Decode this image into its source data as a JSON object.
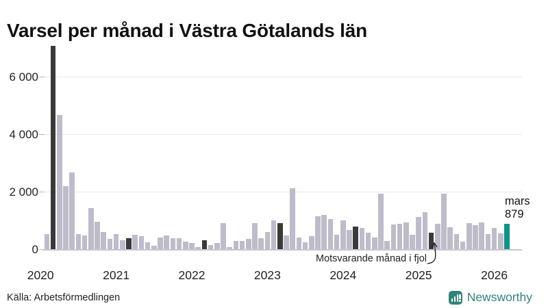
{
  "page": {
    "title": "Varsel per månad i Västra Götalands län",
    "source": "Källa: Arbetsförmedlingen"
  },
  "brand": {
    "wordmark": "Newsworthy",
    "icon": "bar-chart-badge-icon",
    "color": "#2f857c"
  },
  "annotation": {
    "text": "Motsvarande månad i fjol",
    "points_to_month": "2025-03"
  },
  "highlight": {
    "month_label": "mars",
    "value_label": "879",
    "month": "2026-03"
  },
  "colors": {
    "light": "#bebbca",
    "dark": "#3a3a3a",
    "highlight": "#0d9488",
    "grid": "#e7e6ec",
    "axis": "#c6c5ce",
    "tick": "#b5b4bd"
  },
  "chart_data": {
    "type": "bar",
    "title": "Varsel per månad i Västra Götalands län",
    "x_range": [
      "2020-02",
      "2026-03"
    ],
    "year_labels": [
      "2020",
      "2021",
      "2022",
      "2023",
      "2024",
      "2025",
      "2026"
    ],
    "ylim": [
      0,
      7100
    ],
    "grid": true,
    "legend": "none",
    "yticks": [
      {
        "value": 0,
        "label": "0"
      },
      {
        "value": 2000,
        "label": "2 000"
      },
      {
        "value": 4000,
        "label": "4 000"
      },
      {
        "value": 6000,
        "label": "6 000"
      }
    ],
    "points": [
      {
        "month": "2020-02",
        "value": 520,
        "kind": "light"
      },
      {
        "month": "2020-03",
        "value": 7070,
        "kind": "dark"
      },
      {
        "month": "2020-04",
        "value": 4660,
        "kind": "light"
      },
      {
        "month": "2020-05",
        "value": 2200,
        "kind": "light"
      },
      {
        "month": "2020-06",
        "value": 2660,
        "kind": "light"
      },
      {
        "month": "2020-07",
        "value": 520,
        "kind": "light"
      },
      {
        "month": "2020-08",
        "value": 470,
        "kind": "light"
      },
      {
        "month": "2020-09",
        "value": 1420,
        "kind": "light"
      },
      {
        "month": "2020-10",
        "value": 950,
        "kind": "light"
      },
      {
        "month": "2020-11",
        "value": 590,
        "kind": "light"
      },
      {
        "month": "2020-12",
        "value": 350,
        "kind": "light"
      },
      {
        "month": "2021-01",
        "value": 520,
        "kind": "light"
      },
      {
        "month": "2021-02",
        "value": 310,
        "kind": "light"
      },
      {
        "month": "2021-03",
        "value": 370,
        "kind": "dark"
      },
      {
        "month": "2021-04",
        "value": 500,
        "kind": "light"
      },
      {
        "month": "2021-05",
        "value": 450,
        "kind": "light"
      },
      {
        "month": "2021-06",
        "value": 240,
        "kind": "light"
      },
      {
        "month": "2021-07",
        "value": 120,
        "kind": "light"
      },
      {
        "month": "2021-08",
        "value": 405,
        "kind": "light"
      },
      {
        "month": "2021-09",
        "value": 475,
        "kind": "light"
      },
      {
        "month": "2021-10",
        "value": 380,
        "kind": "light"
      },
      {
        "month": "2021-11",
        "value": 380,
        "kind": "light"
      },
      {
        "month": "2021-12",
        "value": 260,
        "kind": "light"
      },
      {
        "month": "2022-01",
        "value": 215,
        "kind": "light"
      },
      {
        "month": "2022-02",
        "value": 60,
        "kind": "light"
      },
      {
        "month": "2022-03",
        "value": 310,
        "kind": "dark"
      },
      {
        "month": "2022-04",
        "value": 140,
        "kind": "light"
      },
      {
        "month": "2022-05",
        "value": 215,
        "kind": "light"
      },
      {
        "month": "2022-06",
        "value": 900,
        "kind": "light"
      },
      {
        "month": "2022-07",
        "value": 70,
        "kind": "light"
      },
      {
        "month": "2022-08",
        "value": 285,
        "kind": "light"
      },
      {
        "month": "2022-09",
        "value": 280,
        "kind": "light"
      },
      {
        "month": "2022-10",
        "value": 355,
        "kind": "light"
      },
      {
        "month": "2022-11",
        "value": 900,
        "kind": "light"
      },
      {
        "month": "2022-12",
        "value": 380,
        "kind": "light"
      },
      {
        "month": "2023-01",
        "value": 595,
        "kind": "light"
      },
      {
        "month": "2023-02",
        "value": 1000,
        "kind": "light"
      },
      {
        "month": "2023-03",
        "value": 905,
        "kind": "dark"
      },
      {
        "month": "2023-04",
        "value": 475,
        "kind": "light"
      },
      {
        "month": "2023-05",
        "value": 2120,
        "kind": "light"
      },
      {
        "month": "2023-06",
        "value": 405,
        "kind": "light"
      },
      {
        "month": "2023-07",
        "value": 250,
        "kind": "light"
      },
      {
        "month": "2023-08",
        "value": 450,
        "kind": "light"
      },
      {
        "month": "2023-09",
        "value": 1140,
        "kind": "light"
      },
      {
        "month": "2023-10",
        "value": 1190,
        "kind": "light"
      },
      {
        "month": "2023-11",
        "value": 1045,
        "kind": "light"
      },
      {
        "month": "2023-12",
        "value": 500,
        "kind": "light"
      },
      {
        "month": "2024-01",
        "value": 1000,
        "kind": "light"
      },
      {
        "month": "2024-02",
        "value": 665,
        "kind": "light"
      },
      {
        "month": "2024-03",
        "value": 780,
        "kind": "dark"
      },
      {
        "month": "2024-04",
        "value": 740,
        "kind": "light"
      },
      {
        "month": "2024-05",
        "value": 570,
        "kind": "light"
      },
      {
        "month": "2024-06",
        "value": 405,
        "kind": "light"
      },
      {
        "month": "2024-07",
        "value": 1925,
        "kind": "light"
      },
      {
        "month": "2024-08",
        "value": 285,
        "kind": "light"
      },
      {
        "month": "2024-09",
        "value": 855,
        "kind": "light"
      },
      {
        "month": "2024-10",
        "value": 880,
        "kind": "light"
      },
      {
        "month": "2024-11",
        "value": 930,
        "kind": "light"
      },
      {
        "month": "2024-12",
        "value": 500,
        "kind": "light"
      },
      {
        "month": "2025-01",
        "value": 1120,
        "kind": "light"
      },
      {
        "month": "2025-02",
        "value": 1285,
        "kind": "light"
      },
      {
        "month": "2025-03",
        "value": 570,
        "kind": "dark"
      },
      {
        "month": "2025-04",
        "value": 880,
        "kind": "light"
      },
      {
        "month": "2025-05",
        "value": 1925,
        "kind": "light"
      },
      {
        "month": "2025-06",
        "value": 760,
        "kind": "light"
      },
      {
        "month": "2025-07",
        "value": 525,
        "kind": "light"
      },
      {
        "month": "2025-08",
        "value": 260,
        "kind": "light"
      },
      {
        "month": "2025-09",
        "value": 900,
        "kind": "light"
      },
      {
        "month": "2025-10",
        "value": 830,
        "kind": "light"
      },
      {
        "month": "2025-11",
        "value": 930,
        "kind": "light"
      },
      {
        "month": "2025-12",
        "value": 520,
        "kind": "light"
      },
      {
        "month": "2026-01",
        "value": 730,
        "kind": "light"
      },
      {
        "month": "2026-02",
        "value": 545,
        "kind": "light"
      },
      {
        "month": "2026-03",
        "value": 879,
        "kind": "highlight"
      }
    ]
  }
}
